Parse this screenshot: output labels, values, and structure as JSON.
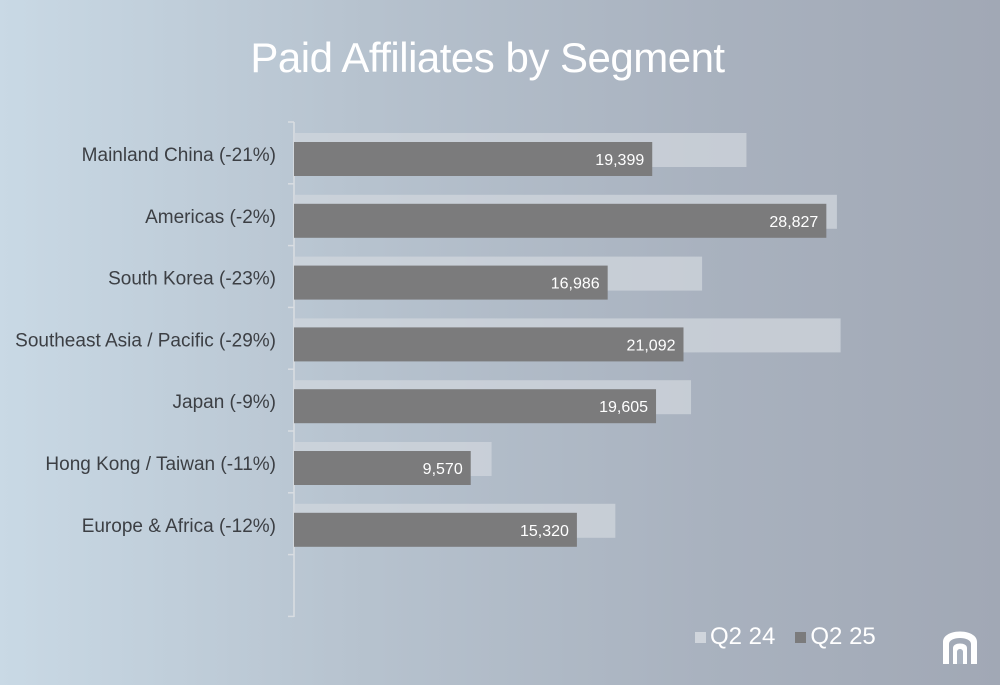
{
  "chart_data": {
    "type": "bar",
    "orientation": "horizontal",
    "title": "Paid Affiliates by Segment",
    "categories": [
      "Mainland China (-21%)",
      "Americas (-2%)",
      "South Korea (-23%)",
      "Southeast Asia / Pacific (-29%)",
      "Japan (-9%)",
      "Hong Kong / Taiwan (-11%)",
      "Europe & Africa (-12%)"
    ],
    "series": [
      {
        "name": "Q2 24",
        "values": [
          24500,
          29400,
          22100,
          29600,
          21500,
          10700,
          17400
        ],
        "color": "#d0d5dc"
      },
      {
        "name": "Q2 25",
        "values": [
          19399,
          28827,
          16986,
          21092,
          19605,
          9570,
          15320
        ],
        "color": "#7b7b7c"
      }
    ],
    "data_labels": [
      "19,399",
      "28,827",
      "16,986",
      "21,092",
      "19,605",
      "9,570",
      "15,320"
    ],
    "xlim": [
      0,
      30000
    ],
    "grid": false,
    "legend": "bottom-right"
  },
  "colors": {
    "title": "#ffffff",
    "category_text": "#3c3f44",
    "axis": "#d9dde2"
  },
  "logo": {
    "icon": "company-logo-icon"
  }
}
